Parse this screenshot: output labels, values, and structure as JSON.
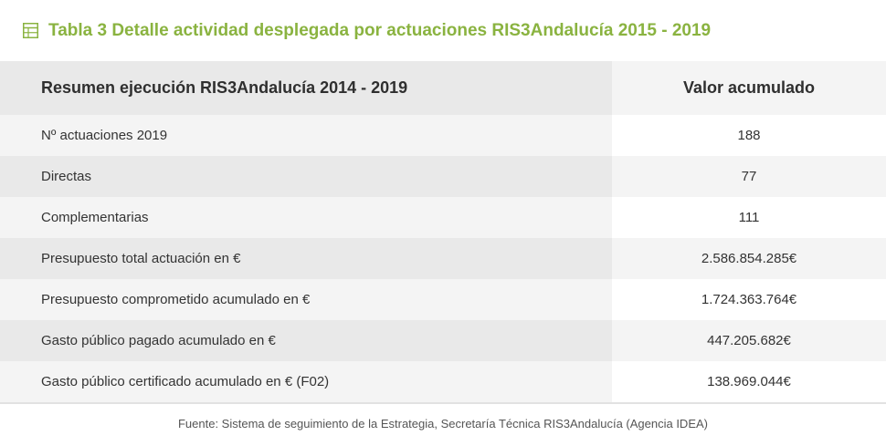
{
  "title": "Tabla 3 Detalle actividad desplegada por actuaciones RIS3Andalucía 2015 - 2019",
  "colors": {
    "accent": "#8ab340",
    "header_bg": "#e9e9e9",
    "row_light": "#f4f4f4"
  },
  "table": {
    "headers": [
      "Resumen ejecución RIS3Andalucía 2014 - 2019",
      "Valor acumulado"
    ],
    "rows": [
      {
        "label": "Nº actuaciones 2019",
        "value": "188"
      },
      {
        "label": "Directas",
        "value": "77"
      },
      {
        "label": "Complementarias",
        "value": "111"
      },
      {
        "label": "Presupuesto total actuación en €",
        "value": "2.586.854.285€"
      },
      {
        "label": "Presupuesto comprometido acumulado en €",
        "value": "1.724.363.764€"
      },
      {
        "label": "Gasto público pagado acumulado en €",
        "value": "447.205.682€"
      },
      {
        "label": "Gasto público certificado acumulado en € (F02)",
        "value": "138.969.044€"
      }
    ]
  },
  "footer": "Fuente: Sistema de seguimiento de la Estrategia, Secretaría Técnica RIS3Andalucía (Agencia IDEA)"
}
